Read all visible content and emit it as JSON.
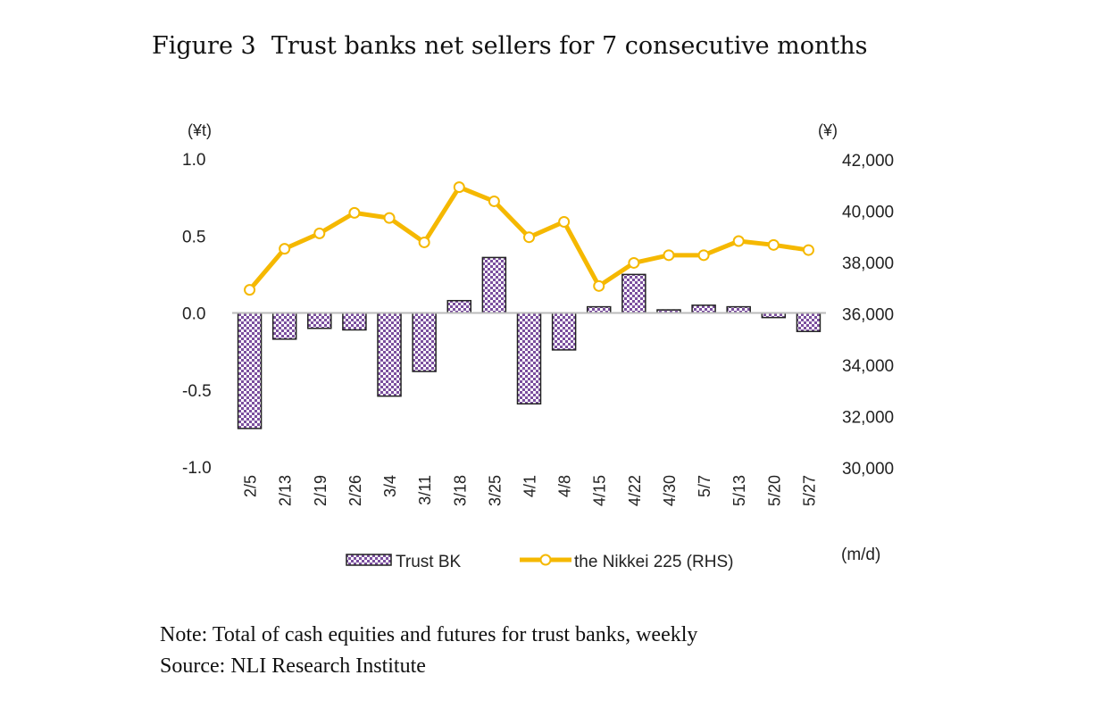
{
  "title": "Figure 3  Trust banks net sellers for 7 consecutive months",
  "note": "Note: Total of cash equities and futures for trust banks, weekly",
  "source": "Source: NLI Research Institute",
  "chart_data": {
    "type": "bar+line",
    "categories": [
      "2/5",
      "2/13",
      "2/19",
      "2/26",
      "3/4",
      "3/11",
      "3/18",
      "3/25",
      "4/1",
      "4/8",
      "4/15",
      "4/22",
      "4/30",
      "5/7",
      "5/13",
      "5/20",
      "5/27"
    ],
    "xunit": "(m/d)",
    "left_axis": {
      "unit": "(¥t)",
      "ylim": [
        -1.0,
        1.0
      ],
      "ticks": [
        "1.0",
        "0.5",
        "0.0",
        "-0.5",
        "-1.0"
      ],
      "tick_values": [
        1.0,
        0.5,
        0.0,
        -0.5,
        -1.0
      ]
    },
    "right_axis": {
      "unit": "(¥)",
      "ylim": [
        30000,
        42000
      ],
      "ticks": [
        "42,000",
        "40,000",
        "38,000",
        "36,000",
        "34,000",
        "32,000",
        "30,000"
      ],
      "tick_values": [
        42000,
        40000,
        38000,
        36000,
        34000,
        32000,
        30000
      ]
    },
    "series": [
      {
        "name": "Trust BK",
        "type": "bar",
        "axis": "left",
        "color": "#7b4f9e",
        "values": [
          -0.75,
          -0.17,
          -0.1,
          -0.11,
          -0.54,
          -0.38,
          0.08,
          0.36,
          -0.59,
          -0.24,
          0.04,
          0.25,
          0.02,
          0.05,
          0.04,
          -0.03,
          -0.12
        ]
      },
      {
        "name": "the Nikkei 225 (RHS)",
        "type": "line",
        "axis": "right",
        "color": "#f5b800",
        "values": [
          36900,
          38500,
          39100,
          39900,
          39700,
          38750,
          40900,
          40350,
          38950,
          39550,
          37050,
          37950,
          38250,
          38250,
          38800,
          38650,
          38450
        ]
      }
    ],
    "grid": false,
    "legend": "bottom"
  }
}
